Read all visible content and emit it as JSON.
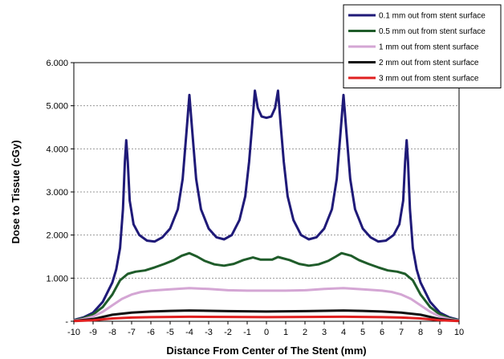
{
  "chart_data": {
    "type": "line",
    "title": "",
    "xlabel": "Distance From Center of The Stent (mm)",
    "ylabel": "Dose to Tissue (cGy)",
    "xlim": [
      -10,
      10
    ],
    "ylim": [
      0,
      6000
    ],
    "x_ticks": [
      -10,
      -9,
      -8,
      -7,
      -6,
      -5,
      -4,
      -3,
      -2,
      -1,
      0,
      1,
      2,
      3,
      4,
      5,
      6,
      7,
      8,
      9,
      10
    ],
    "x_tick_labels": [
      "-10",
      "-9",
      "-8",
      "-7",
      "-6",
      "-5",
      "-4",
      "-3",
      "-2",
      "-1",
      "0",
      "1",
      "2",
      "3",
      "4",
      "5",
      "6",
      "7",
      "8",
      "9",
      "10"
    ],
    "y_ticks": [
      0,
      1000,
      2000,
      3000,
      4000,
      5000,
      6000
    ],
    "y_tick_labels": [
      "-",
      "1.000",
      "2.000",
      "3.000",
      "4.000",
      "5.000",
      "6.000"
    ],
    "grid": "horizontal-dotted",
    "legend_position": "top-right-outside",
    "series": [
      {
        "name": "0.1 mm out from stent surface",
        "color": "#1f1a78",
        "points": [
          [
            -10,
            30
          ],
          [
            -9.5,
            90
          ],
          [
            -9,
            200
          ],
          [
            -8.5,
            450
          ],
          [
            -8,
            900
          ],
          [
            -7.8,
            1200
          ],
          [
            -7.6,
            1700
          ],
          [
            -7.45,
            2600
          ],
          [
            -7.35,
            3700
          ],
          [
            -7.28,
            4200
          ],
          [
            -7.2,
            3700
          ],
          [
            -7.1,
            2800
          ],
          [
            -6.9,
            2250
          ],
          [
            -6.6,
            2000
          ],
          [
            -6.2,
            1870
          ],
          [
            -5.8,
            1850
          ],
          [
            -5.4,
            1950
          ],
          [
            -5,
            2150
          ],
          [
            -4.6,
            2600
          ],
          [
            -4.35,
            3300
          ],
          [
            -4.15,
            4400
          ],
          [
            -4,
            5250
          ],
          [
            -3.85,
            4400
          ],
          [
            -3.65,
            3300
          ],
          [
            -3.4,
            2600
          ],
          [
            -3,
            2150
          ],
          [
            -2.6,
            1950
          ],
          [
            -2.2,
            1900
          ],
          [
            -1.8,
            2000
          ],
          [
            -1.4,
            2350
          ],
          [
            -1.1,
            2900
          ],
          [
            -0.9,
            3700
          ],
          [
            -0.75,
            4500
          ],
          [
            -0.6,
            5350
          ],
          [
            -0.45,
            4950
          ],
          [
            -0.25,
            4750
          ],
          [
            0,
            4720
          ],
          [
            0.25,
            4750
          ],
          [
            0.45,
            4950
          ],
          [
            0.6,
            5350
          ],
          [
            0.75,
            4500
          ],
          [
            0.9,
            3700
          ],
          [
            1.1,
            2900
          ],
          [
            1.4,
            2350
          ],
          [
            1.8,
            2000
          ],
          [
            2.2,
            1900
          ],
          [
            2.6,
            1950
          ],
          [
            3,
            2150
          ],
          [
            3.4,
            2600
          ],
          [
            3.65,
            3300
          ],
          [
            3.85,
            4400
          ],
          [
            4,
            5250
          ],
          [
            4.15,
            4400
          ],
          [
            4.35,
            3300
          ],
          [
            4.6,
            2600
          ],
          [
            5,
            2150
          ],
          [
            5.4,
            1950
          ],
          [
            5.8,
            1850
          ],
          [
            6.2,
            1870
          ],
          [
            6.6,
            2000
          ],
          [
            6.9,
            2250
          ],
          [
            7.1,
            2800
          ],
          [
            7.2,
            3700
          ],
          [
            7.28,
            4200
          ],
          [
            7.35,
            3700
          ],
          [
            7.45,
            2600
          ],
          [
            7.6,
            1700
          ],
          [
            7.8,
            1200
          ],
          [
            8,
            900
          ],
          [
            8.5,
            450
          ],
          [
            9,
            200
          ],
          [
            9.5,
            90
          ],
          [
            10,
            30
          ]
        ]
      },
      {
        "name": "0.5 mm out from stent surface",
        "color": "#1f5c2a",
        "points": [
          [
            -10,
            20
          ],
          [
            -9.5,
            70
          ],
          [
            -9,
            160
          ],
          [
            -8.5,
            330
          ],
          [
            -8,
            620
          ],
          [
            -7.6,
            950
          ],
          [
            -7.2,
            1100
          ],
          [
            -6.8,
            1150
          ],
          [
            -6.3,
            1180
          ],
          [
            -5.8,
            1250
          ],
          [
            -5.3,
            1330
          ],
          [
            -4.8,
            1420
          ],
          [
            -4.4,
            1520
          ],
          [
            -4,
            1580
          ],
          [
            -3.6,
            1500
          ],
          [
            -3.2,
            1400
          ],
          [
            -2.7,
            1320
          ],
          [
            -2.2,
            1290
          ],
          [
            -1.7,
            1330
          ],
          [
            -1.2,
            1420
          ],
          [
            -0.7,
            1480
          ],
          [
            -0.3,
            1430
          ],
          [
            0,
            1430
          ],
          [
            0.3,
            1430
          ],
          [
            0.6,
            1490
          ],
          [
            1.2,
            1420
          ],
          [
            1.7,
            1330
          ],
          [
            2.2,
            1290
          ],
          [
            2.7,
            1320
          ],
          [
            3.2,
            1400
          ],
          [
            3.6,
            1500
          ],
          [
            3.9,
            1580
          ],
          [
            4.4,
            1520
          ],
          [
            4.8,
            1420
          ],
          [
            5.3,
            1330
          ],
          [
            5.8,
            1250
          ],
          [
            6.3,
            1180
          ],
          [
            6.8,
            1150
          ],
          [
            7.2,
            1100
          ],
          [
            7.6,
            950
          ],
          [
            8,
            620
          ],
          [
            8.5,
            330
          ],
          [
            9,
            160
          ],
          [
            9.5,
            70
          ],
          [
            10,
            20
          ]
        ]
      },
      {
        "name": "1 mm out from stent surface",
        "color": "#d4a6d4",
        "points": [
          [
            -10,
            15
          ],
          [
            -9.5,
            50
          ],
          [
            -9,
            110
          ],
          [
            -8.5,
            220
          ],
          [
            -8,
            370
          ],
          [
            -7.5,
            520
          ],
          [
            -7,
            620
          ],
          [
            -6.5,
            680
          ],
          [
            -6,
            710
          ],
          [
            -5,
            740
          ],
          [
            -4,
            770
          ],
          [
            -3,
            750
          ],
          [
            -2,
            720
          ],
          [
            -1,
            710
          ],
          [
            0,
            710
          ],
          [
            1,
            710
          ],
          [
            2,
            720
          ],
          [
            3,
            750
          ],
          [
            4,
            770
          ],
          [
            5,
            740
          ],
          [
            6,
            710
          ],
          [
            6.5,
            680
          ],
          [
            7,
            620
          ],
          [
            7.5,
            520
          ],
          [
            8,
            370
          ],
          [
            8.5,
            220
          ],
          [
            9,
            110
          ],
          [
            9.5,
            50
          ],
          [
            10,
            15
          ]
        ]
      },
      {
        "name": "2 mm out from stent surface",
        "color": "#111111",
        "points": [
          [
            -10,
            8
          ],
          [
            -9,
            50
          ],
          [
            -8.5,
            100
          ],
          [
            -8,
            150
          ],
          [
            -7,
            200
          ],
          [
            -6,
            225
          ],
          [
            -5,
            240
          ],
          [
            -4,
            250
          ],
          [
            -2,
            235
          ],
          [
            0,
            225
          ],
          [
            2,
            235
          ],
          [
            4,
            250
          ],
          [
            5,
            240
          ],
          [
            6,
            225
          ],
          [
            7,
            200
          ],
          [
            8,
            150
          ],
          [
            8.5,
            100
          ],
          [
            9,
            50
          ],
          [
            10,
            8
          ]
        ]
      },
      {
        "name": "3 mm out from stent surface",
        "color": "#e02020",
        "points": [
          [
            -10,
            5
          ],
          [
            -9,
            25
          ],
          [
            -8.5,
            45
          ],
          [
            -8,
            65
          ],
          [
            -7,
            85
          ],
          [
            -6,
            95
          ],
          [
            -4,
            105
          ],
          [
            -2,
            100
          ],
          [
            0,
            95
          ],
          [
            2,
            100
          ],
          [
            4,
            105
          ],
          [
            6,
            95
          ],
          [
            7,
            85
          ],
          [
            8,
            65
          ],
          [
            8.5,
            45
          ],
          [
            9,
            25
          ],
          [
            10,
            5
          ]
        ]
      }
    ]
  }
}
